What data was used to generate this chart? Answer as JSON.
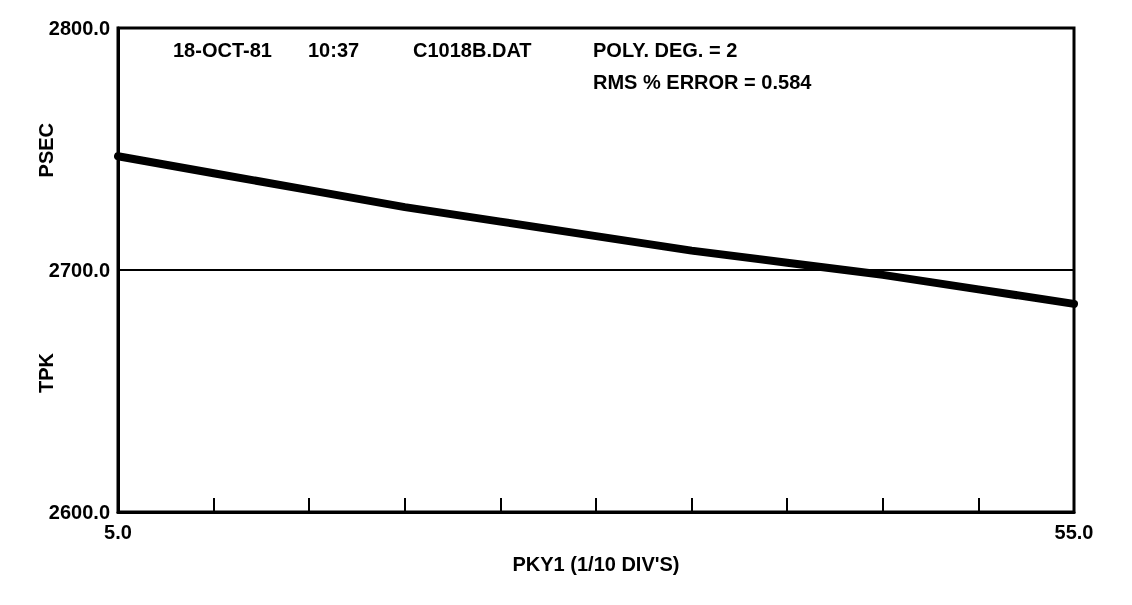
{
  "chart_data": {
    "type": "line",
    "xlabel": "PKY1 (1/10 DIV'S)",
    "ylabel": "PSEC",
    "annotations": [
      "18-OCT-81",
      "10:37",
      "C1018B.DAT",
      "POLY. DEG. = 2",
      "RMS % ERROR = 0.584",
      "TPK"
    ],
    "x": [
      5,
      10,
      15,
      20,
      25,
      30,
      35,
      40,
      45,
      50,
      55
    ],
    "series": [
      {
        "color": "#000000",
        "values": [
          2747,
          2740,
          2733,
          2726,
          2720,
          2714,
          2708,
          2703,
          2698,
          2692,
          2686
        ]
      }
    ],
    "xlim": [
      5,
      55
    ],
    "xticks": [
      {
        "value": 5,
        "label": "5.0"
      },
      {
        "value": 10,
        "label": null
      },
      {
        "value": 15,
        "label": null
      },
      {
        "value": 20,
        "label": null
      },
      {
        "value": 25,
        "label": null
      },
      {
        "value": 30,
        "label": null
      },
      {
        "value": 35,
        "label": null
      },
      {
        "value": 40,
        "label": null
      },
      {
        "value": 45,
        "label": null
      },
      {
        "value": 50,
        "label": null
      },
      {
        "value": 55,
        "label": "55.0"
      }
    ],
    "ylim": [
      2600,
      2800
    ],
    "yticks": [
      {
        "value": 2600,
        "label": "2600.0"
      },
      {
        "value": 2700,
        "label": "2700.0"
      },
      {
        "value": 2800,
        "label": "2800.0"
      }
    ],
    "ref_lines": [
      {
        "axis": "y",
        "value": 2700,
        "color": "#000000"
      }
    ],
    "grid": false,
    "line_style": "solid"
  }
}
